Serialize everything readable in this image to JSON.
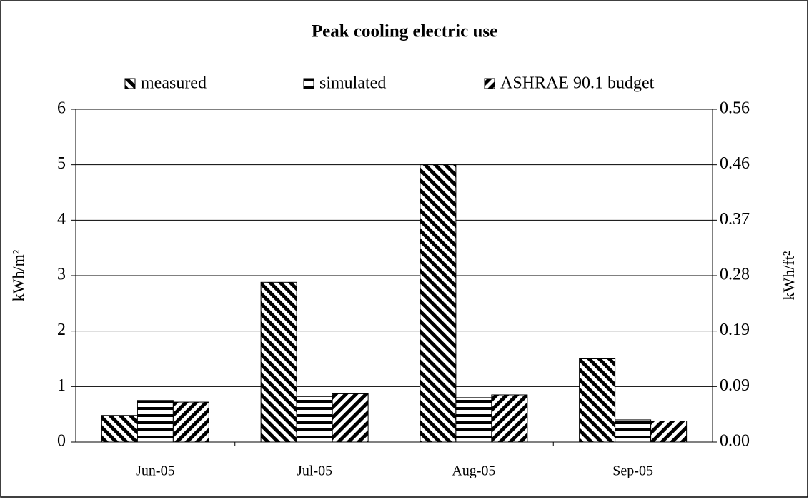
{
  "chart_data": {
    "type": "bar",
    "title": "Peak cooling electric use",
    "categories": [
      "Jun-05",
      "Jul-05",
      "Aug-05",
      "Sep-05"
    ],
    "series": [
      {
        "name": "measured",
        "color": "#000000",
        "pattern": "diagonal-down",
        "values": [
          0.48,
          2.88,
          5.0,
          1.5
        ]
      },
      {
        "name": "simulated",
        "color": "#000000",
        "pattern": "horizontal",
        "values": [
          0.75,
          0.82,
          0.8,
          0.4
        ]
      },
      {
        "name": "ASHRAE 90.1 budget",
        "color": "#000000",
        "pattern": "diagonal-up",
        "values": [
          0.72,
          0.87,
          0.85,
          0.38
        ]
      }
    ],
    "ylabel": "kWh/m²",
    "y2label": "kWh/ft²",
    "ylim": [
      0,
      6
    ],
    "yticks": [
      0,
      1,
      2,
      3,
      4,
      5,
      6
    ],
    "y2lim": [
      0,
      0.5574
    ],
    "y2ticks": [
      {
        "value": 0,
        "label": "0.00"
      },
      {
        "value": 0.0929,
        "label": "0.09"
      },
      {
        "value": 0.1858,
        "label": "0.19"
      },
      {
        "value": 0.2787,
        "label": "0.28"
      },
      {
        "value": 0.3716,
        "label": "0.37"
      },
      {
        "value": 0.4645,
        "label": "0.46"
      },
      {
        "value": 0.5574,
        "label": "0.56"
      }
    ],
    "grid": true,
    "legend": "top"
  }
}
